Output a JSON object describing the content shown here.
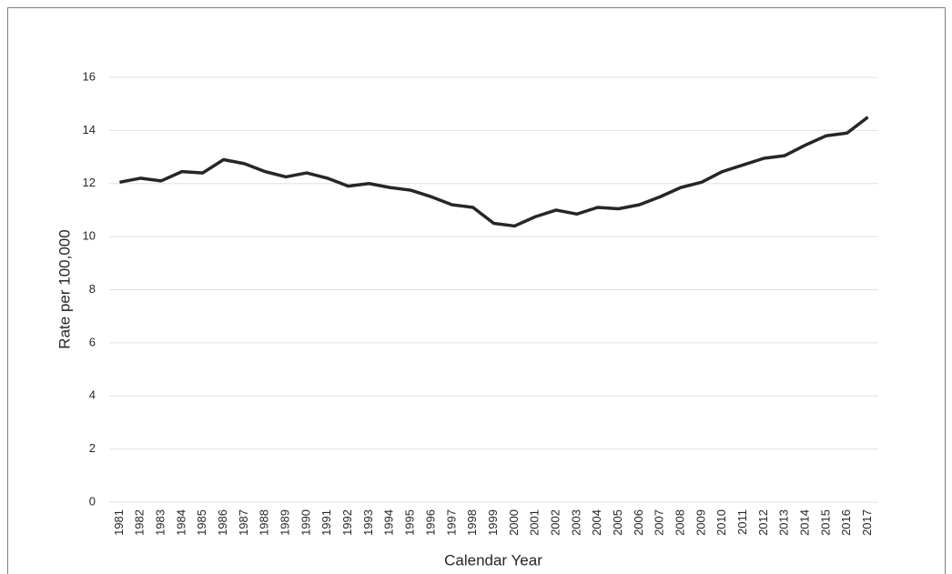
{
  "chart_data": {
    "type": "line",
    "x_label": "Calendar Year",
    "y_label": "Rate per 100,000",
    "categories": [
      "1981",
      "1982",
      "1983",
      "1984",
      "1985",
      "1986",
      "1987",
      "1988",
      "1989",
      "1990",
      "1991",
      "1992",
      "1993",
      "1994",
      "1995",
      "1996",
      "1997",
      "1998",
      "1999",
      "2000",
      "2001",
      "2002",
      "2003",
      "2004",
      "2005",
      "2006",
      "2007",
      "2008",
      "2009",
      "2010",
      "2011",
      "2012",
      "2013",
      "2014",
      "2015",
      "2016",
      "2017"
    ],
    "series": [
      {
        "color": "#262626",
        "values": [
          12.05,
          12.2,
          12.1,
          12.45,
          12.4,
          12.9,
          12.75,
          12.45,
          12.25,
          12.4,
          12.2,
          11.9,
          12.0,
          11.85,
          11.75,
          11.5,
          11.2,
          11.1,
          10.5,
          10.4,
          10.75,
          11.0,
          10.85,
          11.1,
          11.05,
          11.2,
          11.5,
          11.85,
          12.05,
          12.45,
          12.7,
          12.95,
          13.05,
          13.45,
          13.8,
          13.9,
          14.5
        ]
      }
    ],
    "ylim": [
      0,
      16
    ],
    "yticks": [
      0,
      2,
      4,
      6,
      8,
      10,
      12,
      14,
      16
    ],
    "grid": true
  }
}
